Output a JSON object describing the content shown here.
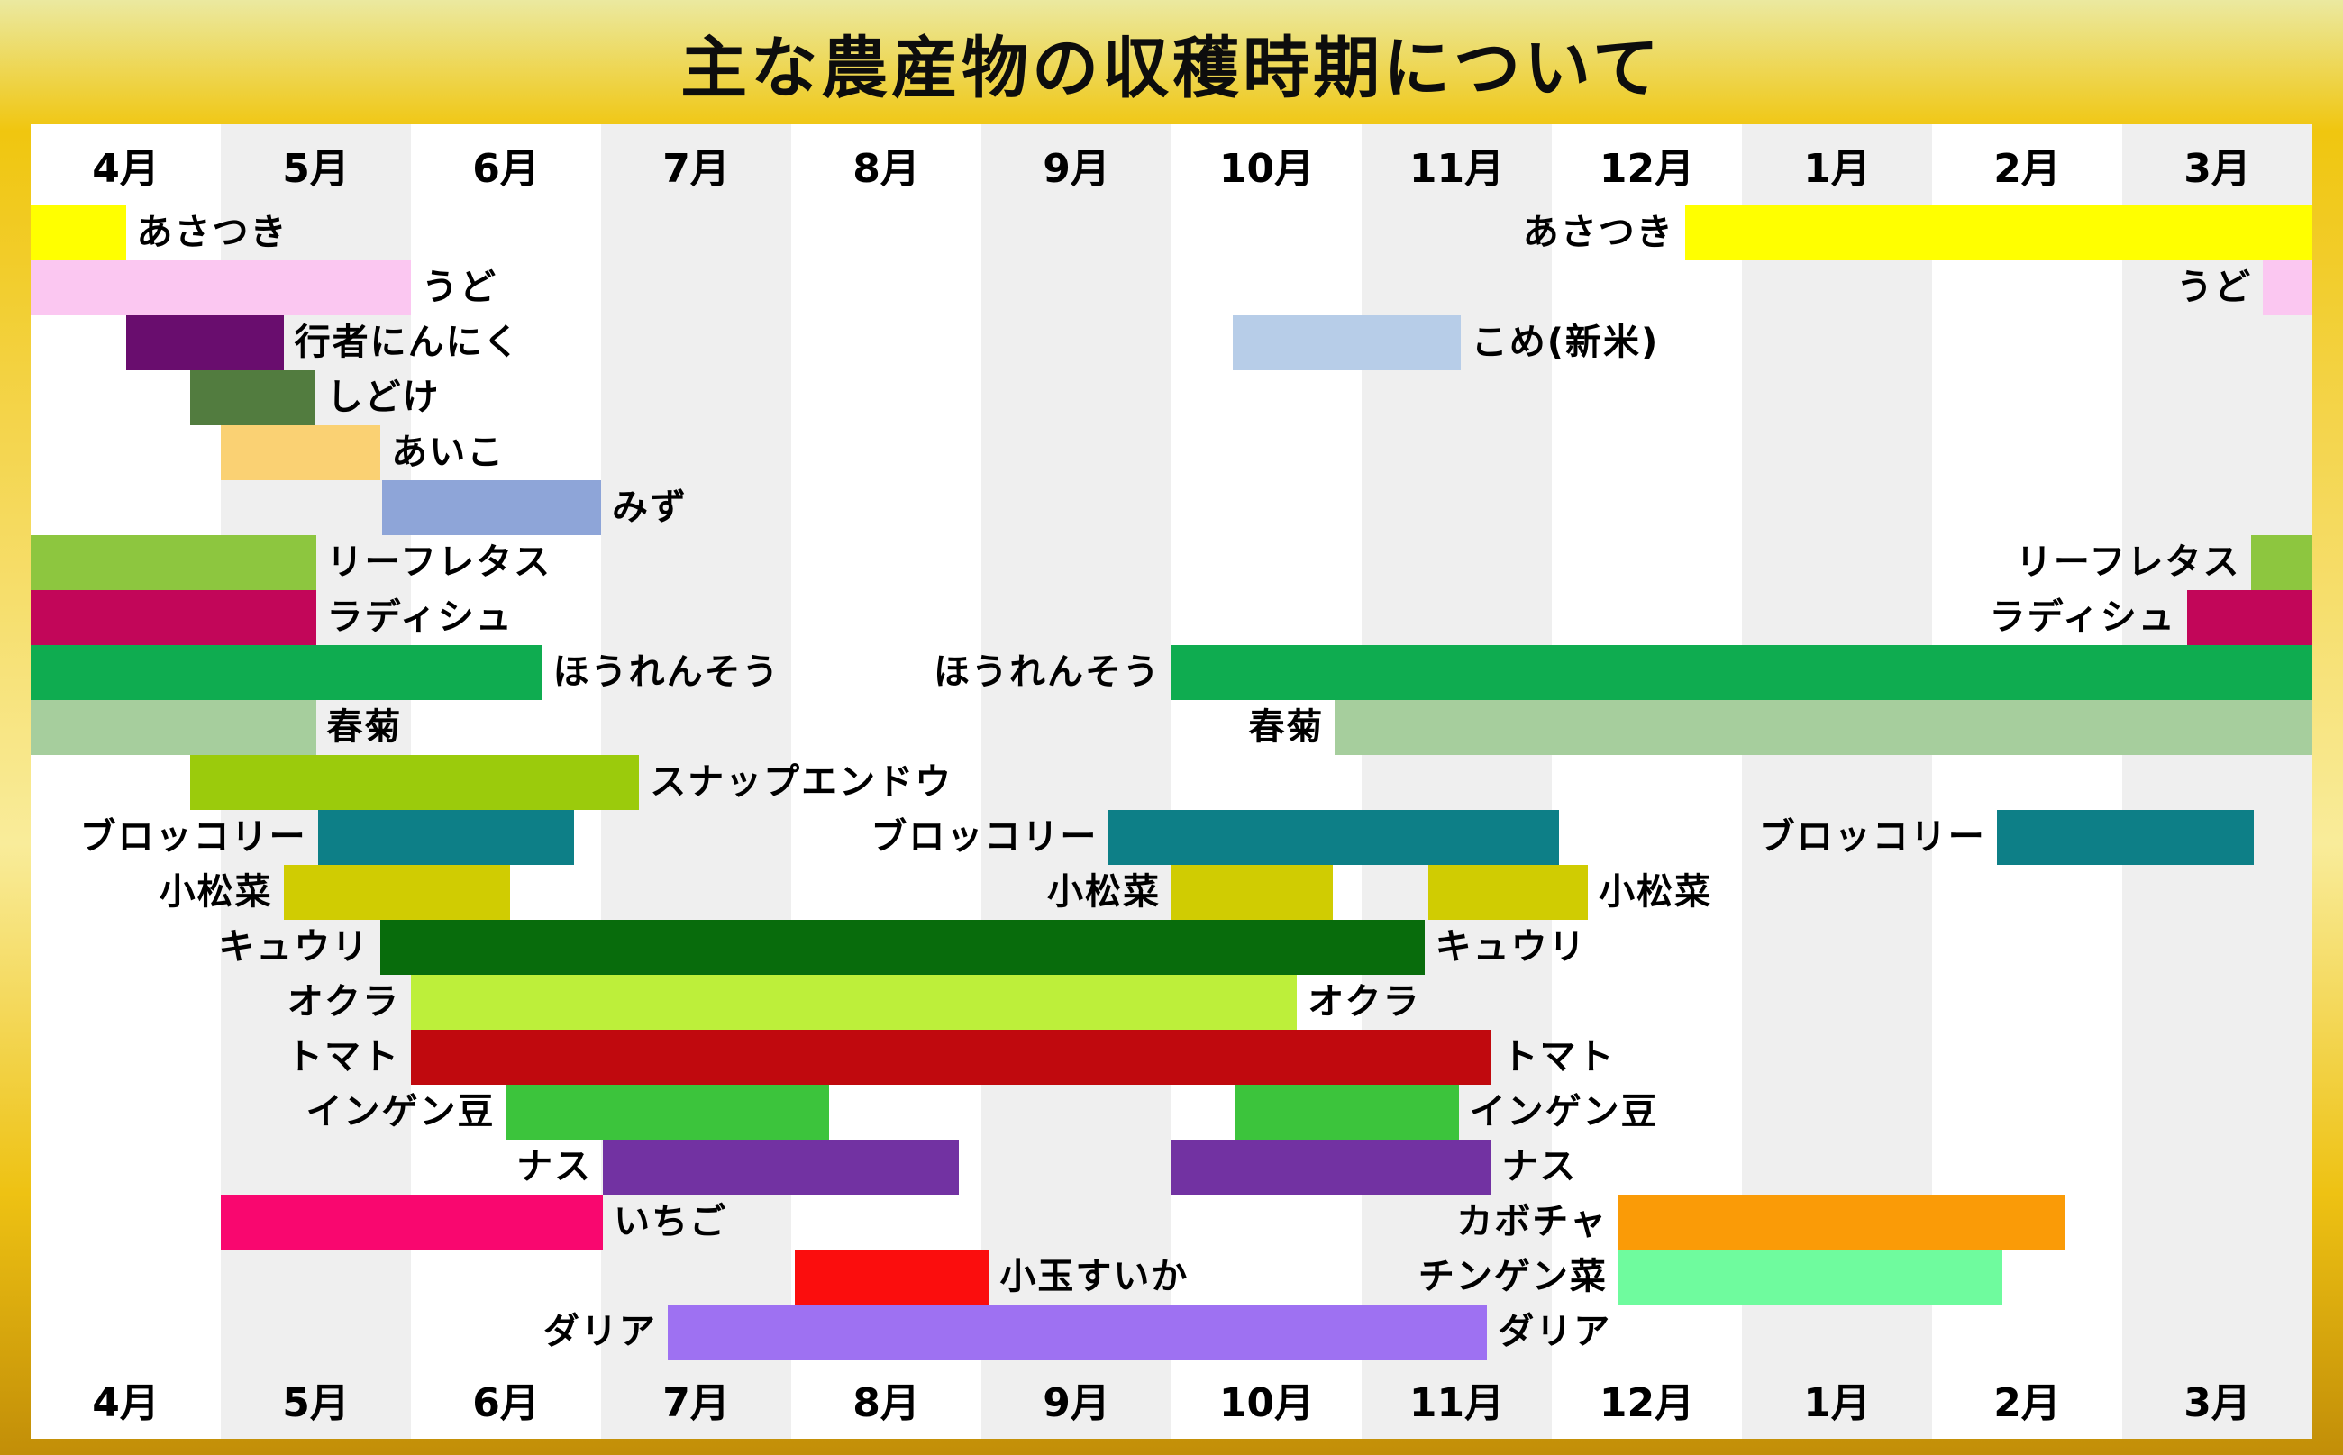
{
  "title": "主な農産物の収穫時期について",
  "months": [
    "4月",
    "5月",
    "6月",
    "7月",
    "8月",
    "9月",
    "10月",
    "11月",
    "12月",
    "1月",
    "2月",
    "3月"
  ],
  "colors": {
    "stripe_even": "#ffffff",
    "stripe_odd": "#efefef",
    "frame_gold_top": "#ebe9a0",
    "frame_gold_mid": "#f0c60f",
    "frame_gold_bottom": "#c28e08",
    "text": "#000000"
  },
  "chart_data": {
    "type": "gantt",
    "title": "主な農産物の収穫時期について",
    "unit_note": "s/e are month offsets from April start: 0=Apr1, 1=May1 ... 12=end of Mar. Year runs Apr→Mar.",
    "months": [
      "4月",
      "5月",
      "6月",
      "7月",
      "8月",
      "9月",
      "10月",
      "11月",
      "12月",
      "1月",
      "2月",
      "3月"
    ],
    "legend_position": "none",
    "rows": [
      {
        "id": "asatsuki",
        "items": [
          {
            "t": "bar",
            "crop": "あさつき",
            "s": 0,
            "e": 0.5,
            "color": "#ffff00"
          },
          {
            "t": "label",
            "text": "あさつき",
            "anchor": "after"
          },
          {
            "t": "label",
            "text": "あさつき",
            "anchor": "before"
          },
          {
            "t": "bar",
            "crop": "あさつき",
            "s": 8.7,
            "e": 12,
            "color": "#ffff00"
          }
        ]
      },
      {
        "id": "udo",
        "items": [
          {
            "t": "bar",
            "crop": "うど",
            "s": 0,
            "e": 2,
            "color": "#fbc7f1"
          },
          {
            "t": "label",
            "text": "うど",
            "anchor": "after"
          },
          {
            "t": "label",
            "text": "うど",
            "anchor": "before"
          },
          {
            "t": "bar",
            "crop": "うど",
            "s": 11.74,
            "e": 12,
            "color": "#fbc7f1"
          }
        ]
      },
      {
        "id": "gyoja-ninniku-kome",
        "items": [
          {
            "t": "bar",
            "crop": "行者にんにく",
            "s": 0.5,
            "e": 1.33,
            "color": "#690d6e"
          },
          {
            "t": "label",
            "text": "行者にんにく",
            "anchor": "after"
          },
          {
            "t": "bar",
            "crop": "こめ(新米)",
            "s": 6.32,
            "e": 7.52,
            "color": "#b7cde8"
          },
          {
            "t": "label",
            "text": "こめ(新米)",
            "anchor": "after"
          }
        ]
      },
      {
        "id": "shidoke",
        "items": [
          {
            "t": "bar",
            "crop": "しどけ",
            "s": 0.84,
            "e": 1.5,
            "color": "#527c3f"
          },
          {
            "t": "label",
            "text": "しどけ",
            "anchor": "after"
          }
        ]
      },
      {
        "id": "aiko",
        "items": [
          {
            "t": "bar",
            "crop": "あいこ",
            "s": 1,
            "e": 1.84,
            "color": "#fad173"
          },
          {
            "t": "label",
            "text": "あいこ",
            "anchor": "after"
          }
        ]
      },
      {
        "id": "mizu",
        "items": [
          {
            "t": "bar",
            "crop": "みず",
            "s": 1.85,
            "e": 3,
            "color": "#8ea5d8"
          },
          {
            "t": "label",
            "text": "みず",
            "anchor": "after"
          }
        ]
      },
      {
        "id": "leaf-lettuce",
        "items": [
          {
            "t": "bar",
            "crop": "リーフレタス",
            "s": 0,
            "e": 1.5,
            "color": "#8dc63f"
          },
          {
            "t": "label",
            "text": "リーフレタス",
            "anchor": "after"
          },
          {
            "t": "label",
            "text": "リーフレタス",
            "anchor": "before"
          },
          {
            "t": "bar",
            "crop": "リーフレタス",
            "s": 11.68,
            "e": 12,
            "color": "#8dc63f"
          }
        ]
      },
      {
        "id": "radish",
        "items": [
          {
            "t": "bar",
            "crop": "ラディシュ",
            "s": 0,
            "e": 1.5,
            "color": "#c20659"
          },
          {
            "t": "label",
            "text": "ラディシュ",
            "anchor": "after"
          },
          {
            "t": "label",
            "text": "ラディシュ",
            "anchor": "before"
          },
          {
            "t": "bar",
            "crop": "ラディシュ",
            "s": 11.34,
            "e": 12,
            "color": "#c20659"
          }
        ]
      },
      {
        "id": "hourensou",
        "items": [
          {
            "t": "bar",
            "crop": "ほうれんそう",
            "s": 0,
            "e": 2.69,
            "color": "#0fac50"
          },
          {
            "t": "label",
            "text": "ほうれんそう",
            "anchor": "after"
          },
          {
            "t": "label",
            "text": "ほうれんそう",
            "anchor": "before"
          },
          {
            "t": "bar",
            "crop": "ほうれんそう",
            "s": 6,
            "e": 12,
            "color": "#0fac50"
          }
        ]
      },
      {
        "id": "shungiku",
        "items": [
          {
            "t": "bar",
            "crop": "春菊",
            "s": 0,
            "e": 1.5,
            "color": "#a6ce9d"
          },
          {
            "t": "label",
            "text": "春菊",
            "anchor": "after"
          },
          {
            "t": "label",
            "text": "春菊",
            "anchor": "before"
          },
          {
            "t": "bar",
            "crop": "春菊",
            "s": 6.86,
            "e": 12,
            "color": "#a6ce9d"
          }
        ]
      },
      {
        "id": "snap-endou",
        "items": [
          {
            "t": "bar",
            "crop": "スナップエンドウ",
            "s": 0.84,
            "e": 3.2,
            "color": "#9bcb0c"
          },
          {
            "t": "label",
            "text": "スナップエンドウ",
            "anchor": "after"
          }
        ]
      },
      {
        "id": "broccoli",
        "items": [
          {
            "t": "label",
            "text": "ブロッコリー",
            "anchor": "before"
          },
          {
            "t": "bar",
            "crop": "ブロッコリー",
            "s": 1.51,
            "e": 2.86,
            "color": "#0d7f87"
          },
          {
            "t": "label",
            "text": "ブロッコリー",
            "anchor": "before"
          },
          {
            "t": "bar",
            "crop": "ブロッコリー",
            "s": 5.67,
            "e": 8.04,
            "color": "#0d7f87"
          },
          {
            "t": "label",
            "text": "ブロッコリー",
            "anchor": "before"
          },
          {
            "t": "bar",
            "crop": "ブロッコリー",
            "s": 10.34,
            "e": 11.69,
            "color": "#0d7f87"
          }
        ]
      },
      {
        "id": "komatsuna",
        "items": [
          {
            "t": "label",
            "text": "小松菜",
            "anchor": "before"
          },
          {
            "t": "bar",
            "crop": "小松菜",
            "s": 1.33,
            "e": 2.52,
            "color": "#d0cc02"
          },
          {
            "t": "label",
            "text": "小松菜",
            "anchor": "before"
          },
          {
            "t": "bar",
            "crop": "小松菜",
            "s": 6,
            "e": 6.85,
            "color": "#d0cc02"
          },
          {
            "t": "bar",
            "crop": "小松菜",
            "s": 7.35,
            "e": 8.19,
            "color": "#d0cc02"
          },
          {
            "t": "label",
            "text": "小松菜",
            "anchor": "after"
          }
        ]
      },
      {
        "id": "kyuri",
        "items": [
          {
            "t": "label",
            "text": "キュウリ",
            "anchor": "before"
          },
          {
            "t": "bar",
            "crop": "キュウリ",
            "s": 1.84,
            "e": 7.33,
            "color": "#086c0c"
          },
          {
            "t": "label",
            "text": "キュウリ",
            "anchor": "after"
          }
        ]
      },
      {
        "id": "okra",
        "items": [
          {
            "t": "label",
            "text": "オクラ",
            "anchor": "before"
          },
          {
            "t": "bar",
            "crop": "オクラ",
            "s": 2,
            "e": 6.66,
            "color": "#bdef3a"
          },
          {
            "t": "label",
            "text": "オクラ",
            "anchor": "after"
          }
        ]
      },
      {
        "id": "tomato",
        "items": [
          {
            "t": "label",
            "text": "トマト",
            "anchor": "before"
          },
          {
            "t": "bar",
            "crop": "トマト",
            "s": 2,
            "e": 7.68,
            "color": "#c0090e"
          },
          {
            "t": "label",
            "text": "トマト",
            "anchor": "after"
          }
        ]
      },
      {
        "id": "ingen-mame",
        "items": [
          {
            "t": "label",
            "text": "インゲン豆",
            "anchor": "before"
          },
          {
            "t": "bar",
            "crop": "インゲン豆",
            "s": 2.5,
            "e": 4.2,
            "color": "#3cc43c"
          },
          {
            "t": "bar",
            "crop": "インゲン豆",
            "s": 6.33,
            "e": 7.51,
            "color": "#3cc43c"
          },
          {
            "t": "label",
            "text": "インゲン豆",
            "anchor": "after"
          }
        ]
      },
      {
        "id": "nasu",
        "items": [
          {
            "t": "label",
            "text": "ナス",
            "anchor": "before"
          },
          {
            "t": "bar",
            "crop": "ナス",
            "s": 3.01,
            "e": 4.88,
            "color": "#7232a2"
          },
          {
            "t": "bar",
            "crop": "ナス",
            "s": 6,
            "e": 7.68,
            "color": "#7232a2"
          },
          {
            "t": "label",
            "text": "ナス",
            "anchor": "after"
          }
        ]
      },
      {
        "id": "ichigo-kabocha",
        "items": [
          {
            "t": "bar",
            "crop": "いちご",
            "s": 1,
            "e": 3.01,
            "color": "#f9076f"
          },
          {
            "t": "label",
            "text": "いちご",
            "anchor": "after"
          },
          {
            "t": "label",
            "text": "カボチャ",
            "anchor": "before"
          },
          {
            "t": "bar",
            "crop": "カボチャ",
            "s": 8.35,
            "e": 10.7,
            "color": "#fa9b07"
          }
        ]
      },
      {
        "id": "kodama-suika-chingensai",
        "items": [
          {
            "t": "bar",
            "crop": "小玉すいか",
            "s": 4.02,
            "e": 5.04,
            "color": "#fb0d0d"
          },
          {
            "t": "label",
            "text": "小玉すいか",
            "anchor": "after"
          },
          {
            "t": "label",
            "text": "チンゲン菜",
            "anchor": "before"
          },
          {
            "t": "bar",
            "crop": "チンゲン菜",
            "s": 8.35,
            "e": 10.37,
            "color": "#6ffb9e"
          }
        ]
      },
      {
        "id": "dahlia",
        "items": [
          {
            "t": "label",
            "text": "ダリア",
            "anchor": "before"
          },
          {
            "t": "bar",
            "crop": "ダリア",
            "s": 3.35,
            "e": 7.66,
            "color": "#9e71f2"
          },
          {
            "t": "label",
            "text": "ダリア",
            "anchor": "after"
          }
        ]
      }
    ]
  }
}
